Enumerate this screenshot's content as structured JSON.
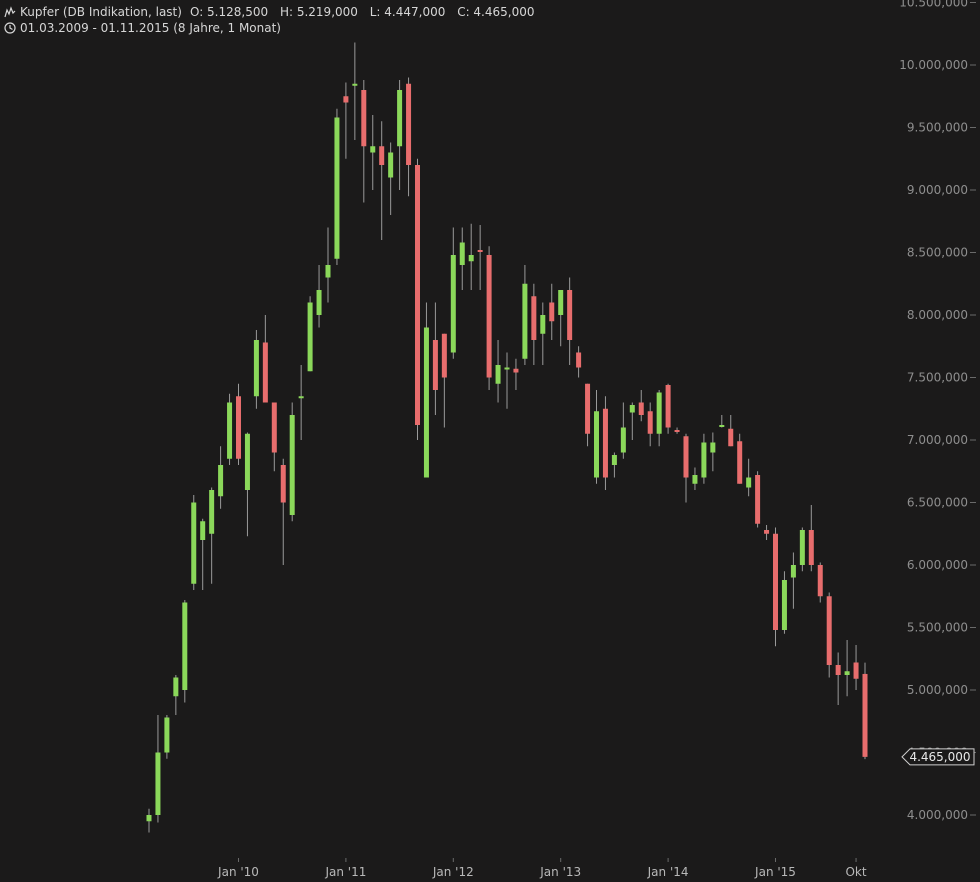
{
  "header": {
    "instrument": "Kupfer (DB Indikation, last)",
    "open": "O: 5.128,500",
    "high": "H: 5.219,000",
    "low": "L: 4.447,000",
    "close": "C: 4.465,000",
    "period": "01.03.2009 - 01.11.2015 (8 Jahre, 1 Monat)"
  },
  "last_value_label": "4.465,000",
  "colors": {
    "up": "#8bd85a",
    "down": "#e86d6d",
    "background": "#1b1a1a",
    "text": "#d6d6d6"
  },
  "chart_data": {
    "type": "candlestick",
    "interval": "monthly",
    "x_tick_labels": [
      "Jan '10",
      "Jan '11",
      "Jan '12",
      "Jan '13",
      "Jan '14",
      "Jan '15",
      "Okt"
    ],
    "y_tick_labels": [
      "4.000,000",
      "4.500,000",
      "5.000,000",
      "5.500,000",
      "6.000,000",
      "6.500,000",
      "7.000,000",
      "7.500,000",
      "8.000,000",
      "8.500,000",
      "9.000,000",
      "9.500,000",
      "10.000,000",
      "10.500,000"
    ],
    "ylim": [
      3800,
      10520
    ],
    "series": [
      {
        "date": "2009-03",
        "o": 3950,
        "h": 4050,
        "l": 3860,
        "c": 4000
      },
      {
        "date": "2009-04",
        "o": 4000,
        "h": 4800,
        "l": 3940,
        "c": 4500
      },
      {
        "date": "2009-05",
        "o": 4500,
        "h": 4800,
        "l": 4450,
        "c": 4780
      },
      {
        "date": "2009-06",
        "o": 4950,
        "h": 5120,
        "l": 4800,
        "c": 5100
      },
      {
        "date": "2009-07",
        "o": 5000,
        "h": 5720,
        "l": 4900,
        "c": 5700
      },
      {
        "date": "2009-08",
        "o": 5850,
        "h": 6560,
        "l": 5800,
        "c": 6500
      },
      {
        "date": "2009-09",
        "o": 6200,
        "h": 6370,
        "l": 5800,
        "c": 6350
      },
      {
        "date": "2009-10",
        "o": 6250,
        "h": 6620,
        "l": 5850,
        "c": 6600
      },
      {
        "date": "2009-11",
        "o": 6550,
        "h": 6950,
        "l": 6450,
        "c": 6800
      },
      {
        "date": "2009-12",
        "o": 6850,
        "h": 7370,
        "l": 6800,
        "c": 7300
      },
      {
        "date": "2010-01",
        "o": 7350,
        "h": 7450,
        "l": 6800,
        "c": 6850
      },
      {
        "date": "2010-02",
        "o": 6600,
        "h": 7060,
        "l": 6230,
        "c": 7050
      },
      {
        "date": "2010-03",
        "o": 7350,
        "h": 7880,
        "l": 7250,
        "c": 7800
      },
      {
        "date": "2010-04",
        "o": 7780,
        "h": 8000,
        "l": 7300,
        "c": 7300
      },
      {
        "date": "2010-05",
        "o": 7300,
        "h": 7300,
        "l": 6750,
        "c": 6900
      },
      {
        "date": "2010-06",
        "o": 6800,
        "h": 6850,
        "l": 6000,
        "c": 6500
      },
      {
        "date": "2010-07",
        "o": 6400,
        "h": 7300,
        "l": 6350,
        "c": 7200
      },
      {
        "date": "2010-08",
        "o": 7350,
        "h": 7600,
        "l": 7000,
        "c": 7350
      },
      {
        "date": "2010-09",
        "o": 7550,
        "h": 8150,
        "l": 7550,
        "c": 8100
      },
      {
        "date": "2010-10",
        "o": 8000,
        "h": 8400,
        "l": 7900,
        "c": 8200
      },
      {
        "date": "2010-11",
        "o": 8300,
        "h": 8700,
        "l": 8100,
        "c": 8400
      },
      {
        "date": "2010-12",
        "o": 8450,
        "h": 9650,
        "l": 8400,
        "c": 9580
      },
      {
        "date": "2011-01",
        "o": 9750,
        "h": 9860,
        "l": 9250,
        "c": 9700
      },
      {
        "date": "2011-02",
        "o": 9850,
        "h": 10180,
        "l": 9400,
        "c": 9850
      },
      {
        "date": "2011-03",
        "o": 9800,
        "h": 9880,
        "l": 8900,
        "c": 9350
      },
      {
        "date": "2011-04",
        "o": 9300,
        "h": 9600,
        "l": 9000,
        "c": 9350
      },
      {
        "date": "2011-05",
        "o": 9350,
        "h": 9550,
        "l": 8600,
        "c": 9200
      },
      {
        "date": "2011-06",
        "o": 9100,
        "h": 9380,
        "l": 8800,
        "c": 9300
      },
      {
        "date": "2011-07",
        "o": 9350,
        "h": 9880,
        "l": 9000,
        "c": 9800
      },
      {
        "date": "2011-08",
        "o": 9850,
        "h": 9900,
        "l": 8950,
        "c": 9200
      },
      {
        "date": "2011-09",
        "o": 9200,
        "h": 9250,
        "l": 7000,
        "c": 7120
      },
      {
        "date": "2011-10",
        "o": 6700,
        "h": 8100,
        "l": 6700,
        "c": 7900
      },
      {
        "date": "2011-11",
        "o": 7800,
        "h": 8100,
        "l": 7200,
        "c": 7400
      },
      {
        "date": "2011-12",
        "o": 7850,
        "h": 7850,
        "l": 7100,
        "c": 7500
      },
      {
        "date": "2012-01",
        "o": 7700,
        "h": 8700,
        "l": 7650,
        "c": 8480
      },
      {
        "date": "2012-02",
        "o": 8400,
        "h": 8700,
        "l": 8200,
        "c": 8580
      },
      {
        "date": "2012-03",
        "o": 8430,
        "h": 8730,
        "l": 8200,
        "c": 8480
      },
      {
        "date": "2012-04",
        "o": 8520,
        "h": 8720,
        "l": 8200,
        "c": 8510
      },
      {
        "date": "2012-05",
        "o": 8480,
        "h": 8550,
        "l": 7400,
        "c": 7500
      },
      {
        "date": "2012-06",
        "o": 7450,
        "h": 7800,
        "l": 7300,
        "c": 7600
      },
      {
        "date": "2012-07",
        "o": 7580,
        "h": 7700,
        "l": 7250,
        "c": 7580
      },
      {
        "date": "2012-08",
        "o": 7570,
        "h": 7650,
        "l": 7400,
        "c": 7540
      },
      {
        "date": "2012-09",
        "o": 7650,
        "h": 8400,
        "l": 7600,
        "c": 8250
      },
      {
        "date": "2012-10",
        "o": 8150,
        "h": 8250,
        "l": 7600,
        "c": 7800
      },
      {
        "date": "2012-11",
        "o": 7850,
        "h": 8100,
        "l": 7600,
        "c": 8000
      },
      {
        "date": "2012-12",
        "o": 8100,
        "h": 8250,
        "l": 7800,
        "c": 7950
      },
      {
        "date": "2013-01",
        "o": 8000,
        "h": 8200,
        "l": 7750,
        "c": 8200
      },
      {
        "date": "2013-02",
        "o": 8200,
        "h": 8300,
        "l": 7600,
        "c": 7800
      },
      {
        "date": "2013-03",
        "o": 7700,
        "h": 7750,
        "l": 7500,
        "c": 7580
      },
      {
        "date": "2013-04",
        "o": 7450,
        "h": 7450,
        "l": 6950,
        "c": 7050
      },
      {
        "date": "2013-05",
        "o": 6700,
        "h": 7400,
        "l": 6650,
        "c": 7230
      },
      {
        "date": "2013-06",
        "o": 7250,
        "h": 7350,
        "l": 6600,
        "c": 6700
      },
      {
        "date": "2013-07",
        "o": 6800,
        "h": 6900,
        "l": 6700,
        "c": 6880
      },
      {
        "date": "2013-08",
        "o": 6900,
        "h": 7300,
        "l": 6850,
        "c": 7100
      },
      {
        "date": "2013-09",
        "o": 7220,
        "h": 7300,
        "l": 7000,
        "c": 7280
      },
      {
        "date": "2013-10",
        "o": 7300,
        "h": 7400,
        "l": 7150,
        "c": 7200
      },
      {
        "date": "2013-11",
        "o": 7230,
        "h": 7300,
        "l": 6950,
        "c": 7050
      },
      {
        "date": "2013-12",
        "o": 7050,
        "h": 7400,
        "l": 6950,
        "c": 7380
      },
      {
        "date": "2014-01",
        "o": 7440,
        "h": 7450,
        "l": 7050,
        "c": 7100
      },
      {
        "date": "2014-02",
        "o": 7080,
        "h": 7100,
        "l": 7050,
        "c": 7070
      },
      {
        "date": "2014-03",
        "o": 7030,
        "h": 7050,
        "l": 6500,
        "c": 6700
      },
      {
        "date": "2014-04",
        "o": 6650,
        "h": 6780,
        "l": 6600,
        "c": 6720
      },
      {
        "date": "2014-05",
        "o": 6700,
        "h": 7050,
        "l": 6650,
        "c": 6980
      },
      {
        "date": "2014-06",
        "o": 6900,
        "h": 7060,
        "l": 6750,
        "c": 6980
      },
      {
        "date": "2014-07",
        "o": 7120,
        "h": 7200,
        "l": 7100,
        "c": 7120
      },
      {
        "date": "2014-08",
        "o": 7090,
        "h": 7200,
        "l": 6950,
        "c": 6950
      },
      {
        "date": "2014-09",
        "o": 6990,
        "h": 7050,
        "l": 6650,
        "c": 6650
      },
      {
        "date": "2014-10",
        "o": 6620,
        "h": 6850,
        "l": 6550,
        "c": 6700
      },
      {
        "date": "2014-11",
        "o": 6720,
        "h": 6750,
        "l": 6300,
        "c": 6330
      },
      {
        "date": "2014-12",
        "o": 6280,
        "h": 6320,
        "l": 6200,
        "c": 6250
      },
      {
        "date": "2015-01",
        "o": 6250,
        "h": 6300,
        "l": 5350,
        "c": 5480
      },
      {
        "date": "2015-02",
        "o": 5480,
        "h": 5950,
        "l": 5450,
        "c": 5880
      },
      {
        "date": "2015-03",
        "o": 5900,
        "h": 6100,
        "l": 5650,
        "c": 6000
      },
      {
        "date": "2015-04",
        "o": 6000,
        "h": 6300,
        "l": 5950,
        "c": 6280
      },
      {
        "date": "2015-05",
        "o": 6280,
        "h": 6480,
        "l": 5950,
        "c": 6000
      },
      {
        "date": "2015-06",
        "o": 6000,
        "h": 6020,
        "l": 5700,
        "c": 5750
      },
      {
        "date": "2015-07",
        "o": 5750,
        "h": 5780,
        "l": 5100,
        "c": 5200
      },
      {
        "date": "2015-08",
        "o": 5200,
        "h": 5300,
        "l": 4880,
        "c": 5120
      },
      {
        "date": "2015-09",
        "o": 5120,
        "h": 5400,
        "l": 4950,
        "c": 5150
      },
      {
        "date": "2015-10",
        "o": 5220,
        "h": 5360,
        "l": 5000,
        "c": 5090
      },
      {
        "date": "2015-11",
        "o": 5128.5,
        "h": 5219,
        "l": 4447,
        "c": 4465
      }
    ]
  }
}
